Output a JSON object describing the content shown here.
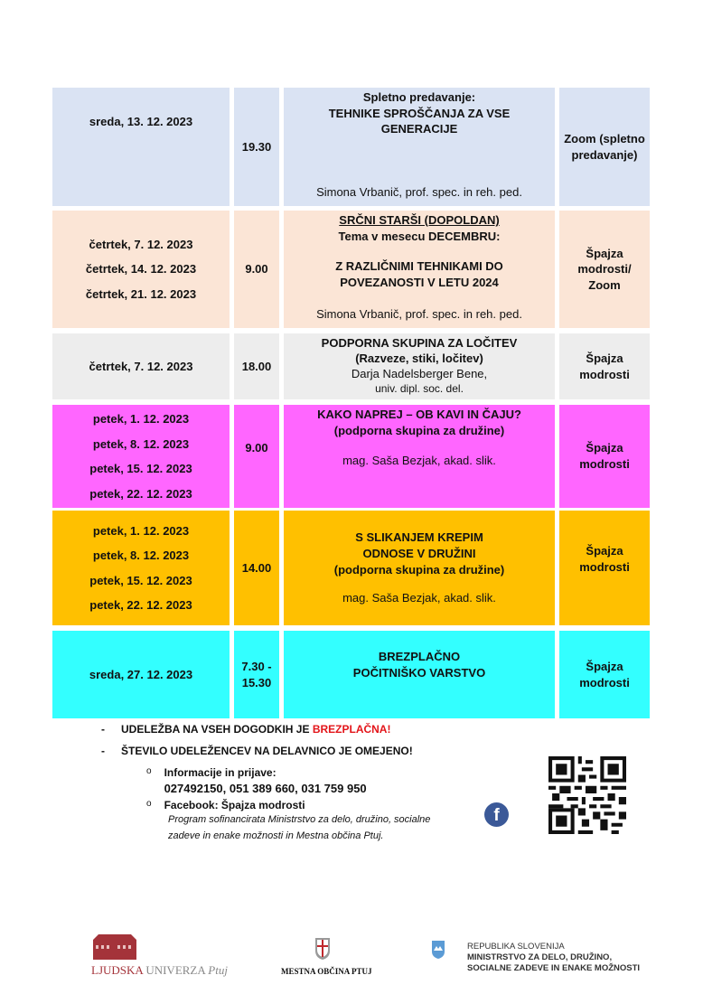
{
  "colors": {
    "row1": "#dae3f3",
    "row2": "#fbe5d6",
    "row3": "#ededed",
    "row4": "#ff66ff",
    "row5": "#ffc000",
    "row6": "#33ffff",
    "highlight": "#e3151a"
  },
  "events": [
    {
      "dates": [
        "sreda, 13. 12. 2023"
      ],
      "time": "19.30",
      "lines": [
        "Spletno predavanje:",
        "TEHNIKE SPROŠČANJA ZA VSE GENERACIJE"
      ],
      "author": "Simona Vrbanič, prof. spec. in reh. ped.",
      "location": "Zoom (spletno predavanje)"
    },
    {
      "dates": [
        "četrtek, 7. 12. 2023",
        "četrtek, 14. 12. 2023",
        "četrtek, 21. 12. 2023"
      ],
      "time": "9.00",
      "title_underlined": "SRČNI STARŠI (DOPOLDAN)",
      "lines": [
        "Tema v mesecu DECEMBRU:",
        "Z RAZLIČNIMI TEHNIKAMI DO POVEZANOSTI V LETU 2024"
      ],
      "author": "Simona Vrbanič, prof. spec. in reh. ped.",
      "location": "Špajza modrosti/ Zoom"
    },
    {
      "dates": [
        "četrtek, 7. 12. 2023"
      ],
      "time": "18.00",
      "lines": [
        "PODPORNA SKUPINA ZA LOČITEV",
        "(Razveze, stiki, ločitev)"
      ],
      "author_lines": [
        "Darja Nadelsberger Bene,",
        "univ. dipl. soc. del."
      ],
      "location": "Špajza modrosti"
    },
    {
      "dates": [
        "petek, 1. 12. 2023",
        "petek, 8. 12. 2023",
        "petek, 15. 12. 2023",
        "petek, 22. 12. 2023"
      ],
      "time": "9.00",
      "lines": [
        "KAKO NAPREJ – OB KAVI IN ČAJU?",
        "(podporna skupina za družine)"
      ],
      "author": "mag. Saša Bezjak, akad. slik.",
      "location": "Špajza modrosti"
    },
    {
      "dates": [
        "petek, 1. 12. 2023",
        "petek, 8. 12. 2023",
        "petek, 15. 12. 2023",
        "petek, 22. 12. 2023"
      ],
      "time": "14.00",
      "lines": [
        "S SLIKANJEM KREPIM ODNOSE V DRUŽINI",
        "(podporna skupina za družine)"
      ],
      "author": "mag. Saša Bezjak, akad. slik.",
      "location": "Špajza modrosti"
    },
    {
      "dates": [
        "sreda, 27. 12. 2023"
      ],
      "time": "7.30 - 15.30",
      "lines": [
        "BREZPLAČNO POČITNIŠKO VARSTVO"
      ],
      "location": "Špajza modrosti"
    }
  ],
  "notes": {
    "bullet": "-",
    "line1_prefix": "UDELEŽBA NA VSEH DOGODKIH JE ",
    "line1_highlight": "BREZPLAČNA!",
    "line2": "ŠTEVILO UDELEŽENCEV NA DELAVNICO JE OMEJENO!",
    "sub_bullet": "o",
    "info_label": "Informacije in prijave:",
    "phones": "027492150, 051 389 660, 031 759 950",
    "facebook": "Facebook: Špajza modrosti",
    "funding1": "Program sofinancirata Ministrstvo za delo, družino, socialne",
    "funding2": "zadeve in enake možnosti in Mestna občina Ptuj.",
    "fb_icon": "facebook-icon",
    "qr_icon": "qr-code"
  },
  "logos": {
    "lu_a": "LJUDSKA",
    "lu_b": " UNIVERZA ",
    "lu_c": "Ptuj",
    "mop": "MESTNA OBČINA PTUJ",
    "rs1": "REPUBLIKA SLOVENIJA",
    "rs2": "MINISTRSTVO ZA DELO, DRUŽINO,",
    "rs3": "SOCIALNE ZADEVE IN ENAKE MOŽNOSTI"
  }
}
